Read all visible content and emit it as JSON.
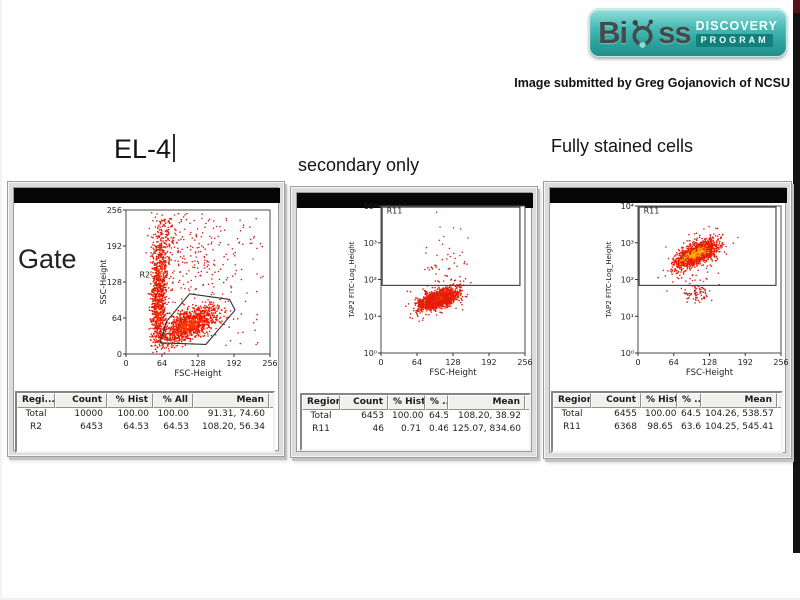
{
  "branding": {
    "logo": {
      "bi": "Bi",
      "ss": "ss",
      "line1": "DISCOVERY",
      "line2": "PROGRAM"
    },
    "credit": "Image submitted by Greg Gojanovich of NCSU",
    "teal": "#35b0aa"
  },
  "labels": {
    "gate": "Gate"
  },
  "chart_data": [
    {
      "type": "scatter",
      "panel_title": "EL-4",
      "xlabel": "FSC-Height",
      "ylabel": "SSC-Height",
      "x_tick_labels": [
        "0",
        "64",
        "128",
        "192",
        "256"
      ],
      "y_tick_labels": [
        "256",
        "192",
        "128",
        "64",
        "0"
      ],
      "xlim": [
        0,
        256
      ],
      "ylim": [
        0,
        256
      ],
      "yscale": "linear",
      "dot_color": "#ee1a00",
      "gate": {
        "label": "R2",
        "shape": "polygon",
        "points": [
          [
            60,
            20
          ],
          [
            142,
            17
          ],
          [
            194,
            78
          ],
          [
            184,
            97
          ],
          [
            113,
            107
          ],
          [
            72,
            58
          ]
        ],
        "label_pos": [
          24,
          136
        ]
      },
      "clusters": [
        {
          "n": 550,
          "cx": 57,
          "cy": 80,
          "sx": 6.5,
          "sy": 40,
          "slope": 0,
          "shape": "gauss",
          "color": "#e81600",
          "core": "#ff2a00"
        },
        {
          "n": 350,
          "cx": 62,
          "cy": 152,
          "sx": 8,
          "sy": 34,
          "slope": 0,
          "shape": "gauss",
          "color": "#e81600",
          "core": "#ff2a00"
        },
        {
          "n": 100,
          "cx": 70,
          "cy": 212,
          "sx": 11,
          "sy": 22,
          "slope": 0,
          "shape": "gauss",
          "color": "#dd2211"
        },
        {
          "n": 1100,
          "cx": 112,
          "cy": 52,
          "sx": 25,
          "sy": 13,
          "slope": 0.35,
          "shape": "gauss",
          "color": "#ee1a00",
          "core": "#ff3300"
        },
        {
          "n": 150,
          "cx": 125,
          "cy": 168,
          "sx": 38,
          "sy": 45,
          "slope": 0,
          "shape": "gauss",
          "color": "#d82020"
        },
        {
          "n": 140,
          "cx": 148,
          "cy": 128,
          "sx": 100,
          "sy": 115,
          "slope": 0,
          "shape": "uniform",
          "color": "#cc2222"
        }
      ],
      "stats": {
        "headers": [
          "Regi...",
          "Count",
          "% Hist",
          "% All",
          "Mean"
        ],
        "rows": [
          [
            "Total",
            "10000",
            "100.00",
            "100.00",
            "91.31, 74.60"
          ],
          [
            "R2",
            "6453",
            "64.53",
            "64.53",
            "108.20, 56.34"
          ]
        ]
      }
    },
    {
      "type": "scatter",
      "panel_title": "secondary only",
      "xlabel": "FSC-Height",
      "ylabel": "TAP2 FITC-Log_Height",
      "x_tick_labels": [
        "0",
        "64",
        "128",
        "192",
        "256"
      ],
      "y_tick_labels": [
        "10⁴",
        "10³",
        "10²",
        "10¹",
        "10⁰"
      ],
      "xlim": [
        0,
        256
      ],
      "yscale": "log",
      "ylog_range": [
        0,
        4
      ],
      "dot_color": "#ee1a00",
      "gate": {
        "label": "R11",
        "shape": "rect",
        "x": [
          2,
          247
        ],
        "y": [
          1.84,
          3.97
        ],
        "label_pos": [
          10,
          3.8
        ]
      },
      "clusters": [
        {
          "n": 1100,
          "cx": 102,
          "cy": 1.47,
          "sx": 17,
          "sy": 0.11,
          "slope": 0.004,
          "shape": "gauss",
          "color": "#ee1a00",
          "core": "#ff3900"
        },
        {
          "n": 220,
          "cx": 102,
          "cy": 1.47,
          "sx": 25,
          "sy": 0.2,
          "slope": 0.004,
          "shape": "gauss",
          "color": "#d81f10"
        },
        {
          "n": 45,
          "cx": 112,
          "cy": 2.15,
          "sx": 17,
          "sy": 0.3,
          "slope": 0,
          "shape": "gauss",
          "color": "#cc2222"
        },
        {
          "n": 14,
          "cx": 120,
          "cy": 3.0,
          "sx": 15,
          "sy": 0.5,
          "slope": 0,
          "shape": "gauss",
          "color": "#cc3333"
        }
      ],
      "stats": {
        "headers": [
          "Region",
          "Count",
          "% Hist",
          "% ...",
          "Mean"
        ],
        "rows": [
          [
            "Total",
            "6453",
            "100.00",
            "64.53",
            "108.20, 38.92"
          ],
          [
            "R11",
            "46",
            "0.71",
            "0.46",
            "125.07, 834.60"
          ]
        ]
      }
    },
    {
      "type": "scatter",
      "panel_title": "Fully stained cells",
      "xlabel": "FSC-Height",
      "ylabel": "TAP2 FITC-Log_Height",
      "x_tick_labels": [
        "0",
        "64",
        "128",
        "192",
        "256"
      ],
      "y_tick_labels": [
        "10⁴",
        "10³",
        "10²",
        "10¹",
        "10⁰"
      ],
      "xlim": [
        0,
        256
      ],
      "yscale": "log",
      "ylog_range": [
        0,
        4
      ],
      "dot_color": "#ee1a00",
      "gate": {
        "label": "R11",
        "shape": "rect",
        "x": [
          2,
          247
        ],
        "y": [
          1.84,
          3.97
        ],
        "label_pos": [
          10,
          3.8
        ]
      },
      "clusters": [
        {
          "n": 1100,
          "cx": 104,
          "cy": 2.68,
          "sx": 19,
          "sy": 0.13,
          "slope": 0.0068,
          "shape": "gauss",
          "color": "#ee1a00",
          "core": "#ff7700"
        },
        {
          "n": 240,
          "cx": 104,
          "cy": 2.68,
          "sx": 27,
          "sy": 0.25,
          "slope": 0.0068,
          "shape": "gauss",
          "color": "#d81f10"
        },
        {
          "n": 90,
          "cx": 104,
          "cy": 2.7,
          "sx": 12,
          "sy": 0.06,
          "slope": 0.0068,
          "shape": "gauss",
          "color": "#ffb300"
        },
        {
          "n": 70,
          "cx": 106,
          "cy": 1.62,
          "sx": 12,
          "sy": 0.13,
          "slope": 0,
          "shape": "gauss",
          "color": "#cc2222"
        },
        {
          "n": 25,
          "cx": 115,
          "cy": 2.05,
          "sx": 25,
          "sy": 0.35,
          "slope": 0,
          "shape": "gauss",
          "color": "#cc3333"
        }
      ],
      "stats": {
        "headers": [
          "Region",
          "Count",
          "% Hist",
          "% ...",
          "Mean"
        ],
        "rows": [
          [
            "Total",
            "6455",
            "100.00",
            "64.55",
            "104.26, 538.57"
          ],
          [
            "R11",
            "6368",
            "98.65",
            "63.68",
            "104.25, 545.41"
          ]
        ]
      }
    }
  ]
}
